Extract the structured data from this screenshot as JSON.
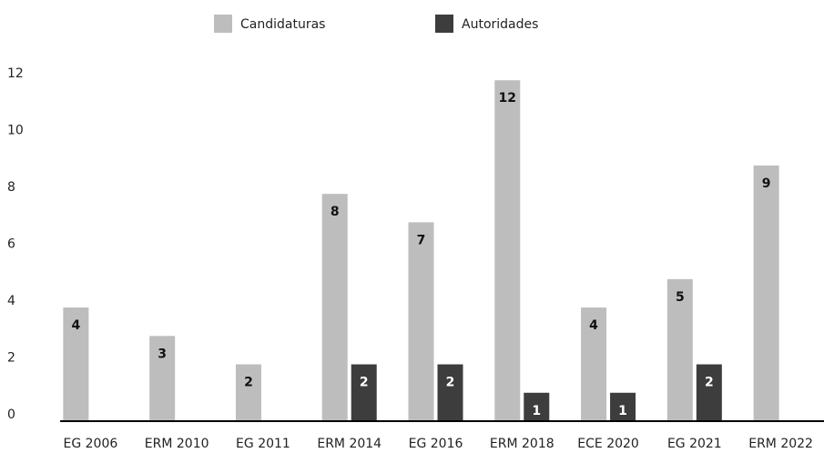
{
  "chart_data": {
    "type": "bar",
    "categories": [
      "EG 2006",
      "ERM 2010",
      "EG 2011",
      "ERM 2014",
      "EG 2016",
      "ERM 2018",
      "ECE 2020",
      "EG 2021",
      "ERM 2022"
    ],
    "series": [
      {
        "name": "Candidaturas",
        "color": "#bdbdbd",
        "values": [
          4,
          3,
          2,
          8,
          7,
          12,
          4,
          5,
          9
        ]
      },
      {
        "name": "Autoridades",
        "color": "#3d3d3d",
        "values": [
          null,
          null,
          null,
          2,
          2,
          1,
          1,
          2,
          null
        ]
      }
    ],
    "ylim": [
      0,
      13
    ],
    "yticks": [
      0,
      2,
      4,
      6,
      8,
      10,
      12
    ],
    "grid": false,
    "legend": "top"
  }
}
